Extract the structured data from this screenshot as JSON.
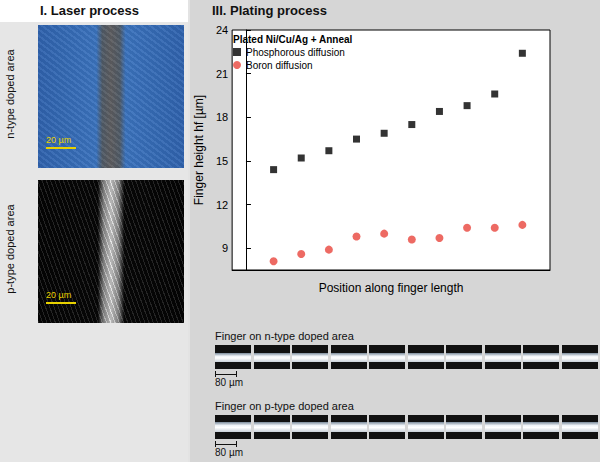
{
  "panels": {
    "laser": {
      "title": "I. Laser process",
      "images": [
        {
          "label": "n-type doped area",
          "scale_bar": "20 µm"
        },
        {
          "label": "p-type doped area",
          "scale_bar": "20 µm"
        }
      ]
    },
    "plating": {
      "title": "III. Plating process",
      "strips": [
        {
          "label": "Finger on n-type doped area",
          "scale_bar": "80 µm"
        },
        {
          "label": "Finger on p-type doped area",
          "scale_bar": "80 µm"
        }
      ]
    }
  },
  "chart_data": {
    "type": "scatter",
    "legend_title": "Plated Ni/Cu/Ag + Anneal",
    "x_label": "Position along finger length",
    "y_label": "Finger height hf [µm]",
    "x": [
      1,
      2,
      3,
      4,
      5,
      6,
      7,
      8,
      9,
      10
    ],
    "xlim": [
      -0.5,
      11
    ],
    "ylim": [
      7.5,
      24
    ],
    "yticks": [
      9,
      12,
      15,
      18,
      21,
      24
    ],
    "tick_labels": "y",
    "grid": false,
    "legend": "upper left",
    "series": [
      {
        "name": "Phosphorous diffusion",
        "color": "#000000",
        "marker": "square",
        "values": [
          14.4,
          15.2,
          15.7,
          16.5,
          16.9,
          17.5,
          18.4,
          18.8,
          19.6,
          22.4
        ]
      },
      {
        "name": "Boron diffusion",
        "color": "#e8453c",
        "marker": "circle",
        "values": [
          8.1,
          8.6,
          8.9,
          9.8,
          10.0,
          9.6,
          9.7,
          10.4,
          10.4,
          10.6
        ]
      }
    ]
  }
}
